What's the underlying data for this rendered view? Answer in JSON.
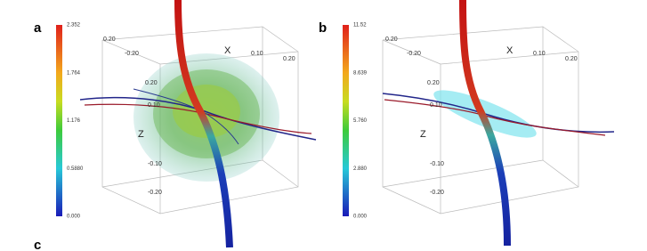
{
  "panels": [
    {
      "label": "a",
      "axis_labels": [
        "X",
        "Z"
      ],
      "colorbar": [
        "2.352",
        "1.764",
        "1.176",
        "0.5880",
        "0.000"
      ],
      "ticks": [
        "0.20",
        "-0.20",
        "0.10",
        "0.20",
        "0.20",
        "0.10",
        "-0.10",
        "-0.20"
      ]
    },
    {
      "label": "b",
      "axis_labels": [
        "X",
        "Z"
      ],
      "colorbar": [
        "11.52",
        "8.639",
        "5.760",
        "2.880",
        "0.000"
      ],
      "ticks": [
        "0.20",
        "-0.20",
        "0.10",
        "0.20",
        "0.20",
        "0.10",
        "-0.10",
        "-0.20"
      ]
    }
  ],
  "footer_label": "c"
}
